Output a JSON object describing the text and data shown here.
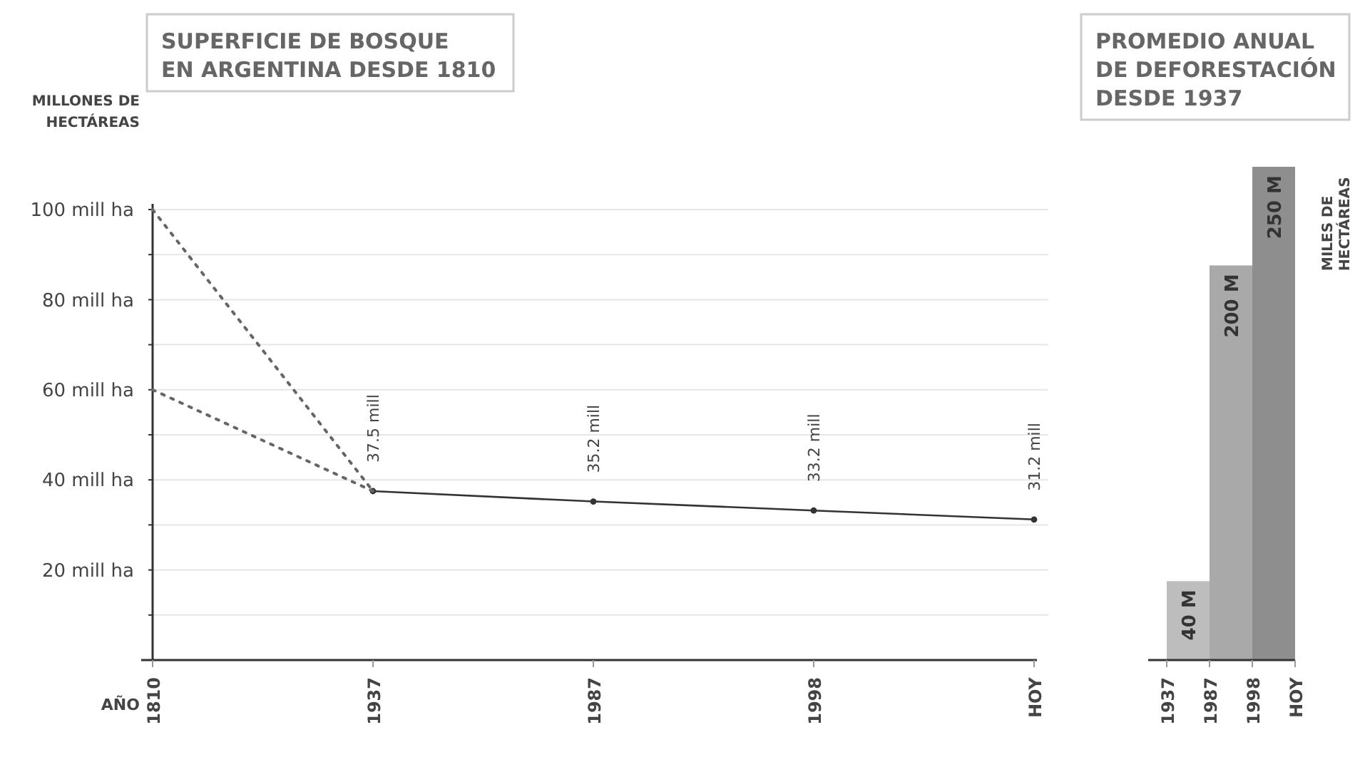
{
  "chart_data": [
    {
      "type": "line",
      "title": "SUPERFICIE DE BOSQUE\nEN ARGENTINA DESDE 1810",
      "xlabel": "AÑO",
      "ylabel": "MILLONES DE\nHECTÁREAS",
      "categories": [
        "1810",
        "1937",
        "1987",
        "1998",
        "HOY"
      ],
      "ylim": [
        0,
        100
      ],
      "yticks": [
        {
          "value": 10,
          "label": null
        },
        {
          "value": 20,
          "label": "20 mill ha"
        },
        {
          "value": 30,
          "label": null
        },
        {
          "value": 40,
          "label": "40 mill ha"
        },
        {
          "value": 50,
          "label": null
        },
        {
          "value": 60,
          "label": "60 mill ha"
        },
        {
          "value": 70,
          "label": null
        },
        {
          "value": 80,
          "label": "80 mill ha"
        },
        {
          "value": 90,
          "label": null
        },
        {
          "value": 100,
          "label": "100 mill ha"
        }
      ],
      "grid": "y",
      "series": [
        {
          "color": "#333333",
          "values": [
            null,
            37.5,
            35.2,
            33.2,
            31.2
          ],
          "value_labels": [
            null,
            "37.5 mill",
            "35.2 mill",
            "33.2 mill",
            "31.2 mill"
          ],
          "marker": "circle",
          "line_style": "solid"
        },
        {
          "color": "#666666",
          "values": [
            100,
            37.5,
            null,
            null,
            null
          ],
          "marker": "none",
          "line_style": "dotted"
        },
        {
          "color": "#666666",
          "values": [
            60,
            37.5,
            null,
            null,
            null
          ],
          "marker": "none",
          "line_style": "dotted"
        }
      ]
    },
    {
      "type": "bar",
      "title": "PROMEDIO ANUAL\nDE DEFORESTACIÓN\nDESDE 1937",
      "ylabel": "MILES DE\nHECTÁREAS",
      "categories": [
        "1937",
        "1987",
        "1998",
        "HOY"
      ],
      "values": [
        40,
        200,
        250,
        null
      ],
      "colors": [
        "#bdbdbd",
        "#a9a9a9",
        "#8e8e8e",
        null
      ],
      "value_labels": [
        "40 M",
        "200 M",
        "250 M",
        null
      ],
      "ylim": [
        0,
        250
      ],
      "tick_labels": "x"
    }
  ]
}
